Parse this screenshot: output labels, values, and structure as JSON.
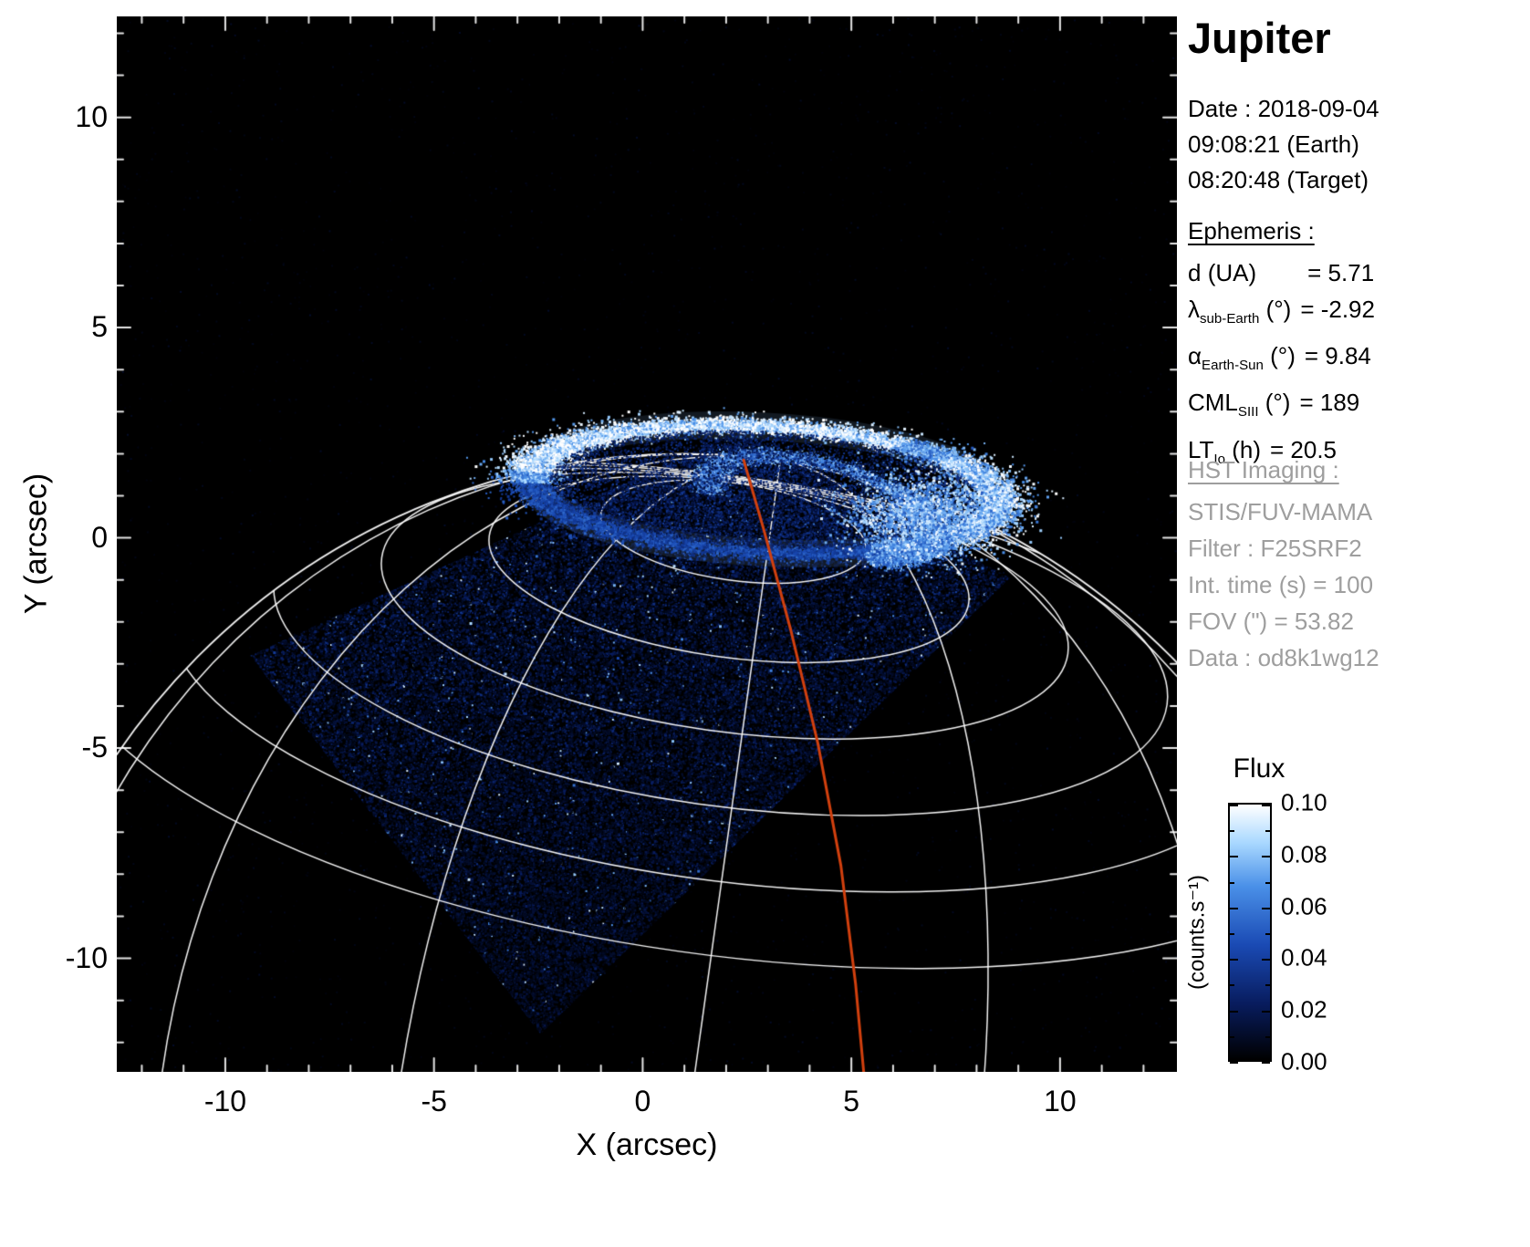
{
  "panel": {
    "title": "Jupiter",
    "date_line": "Date : 2018-09-04",
    "earth_time": "09:08:21 (Earth)",
    "target_time": "08:20:48 (Target)",
    "ephemeris_heading": "Ephemeris :",
    "ephemeris_rows": [
      {
        "symbol": "d",
        "subscript": "",
        "unit": "(UA)",
        "value": "= 5.71"
      },
      {
        "symbol": "λ",
        "subscript": "sub-Earth",
        "unit": "(°)",
        "value": "= -2.92"
      },
      {
        "symbol": "α",
        "subscript": "Earth-Sun",
        "unit": "(°)",
        "value": "= 9.84"
      },
      {
        "symbol": "CML",
        "subscript": "SIII",
        "unit": "(°)",
        "value": "= 189"
      },
      {
        "symbol": "LT",
        "subscript": "Io",
        "unit": "(h)",
        "value": "= 20.5"
      }
    ],
    "hst_heading": "HST Imaging :",
    "hst_rows": [
      "STIS/FUV-MAMA",
      "Filter : F25SRF2",
      "Int. time (s) = 100",
      "FOV (\") = 53.82",
      "Data : od8k1wg12"
    ]
  },
  "colorbar": {
    "title": "Flux",
    "unit": "(counts.s⁻¹)",
    "tick_labels": [
      "0.10",
      "0.08",
      "0.06",
      "0.04",
      "0.02",
      "0.00"
    ],
    "range": [
      0.0,
      0.1
    ],
    "colormap_stops": [
      [
        0.0,
        "#000000"
      ],
      [
        0.22,
        "#081c5e"
      ],
      [
        0.45,
        "#1a4ab4"
      ],
      [
        0.68,
        "#4a90e8"
      ],
      [
        0.85,
        "#a9d8ff"
      ],
      [
        1.0,
        "#ffffff"
      ]
    ]
  },
  "chart_data": {
    "type": "heatmap",
    "title": "HST/STIS far-UV image of Jupiter's northern aurora",
    "xlabel": "X (arcsec)",
    "ylabel": "Y (arcsec)",
    "xlim": [
      -12.6,
      12.8
    ],
    "ylim": [
      -12.7,
      12.4
    ],
    "x_ticks": [
      -10,
      -5,
      0,
      5,
      10
    ],
    "y_ticks": [
      10,
      5,
      0,
      -5,
      -10
    ],
    "flux_range_counts_per_s": [
      0.0,
      0.1
    ],
    "background_color": "#000000",
    "grid": "white planetary latitude-longitude graticule over the disk",
    "legend": "vertical flux colorbar at right",
    "features": {
      "detector_fov_corners_arcsec": [
        [
          -9.4,
          -2.8
        ],
        [
          2.3,
          2.55
        ],
        [
          8.8,
          -0.95
        ],
        [
          -2.45,
          -11.8
        ]
      ],
      "aurora_main_oval": {
        "center": [
          2.9,
          1.15
        ],
        "semi_major": 5.6,
        "semi_minor": 1.5,
        "rotation_deg": -3
      },
      "aurora_secondary_arc": {
        "center": [
          4.3,
          0.7
        ],
        "semi_major": 2.8,
        "semi_minor": 1.05,
        "rotation_deg": -15
      },
      "aurora_bright_patch": {
        "center": [
          6.7,
          0.5
        ],
        "sigma": [
          0.85,
          0.5
        ]
      },
      "planet_limb": {
        "center": [
          1.0,
          -14.5
        ],
        "radius": 16.5
      },
      "graticule_pole": [
        2.3,
        1.25
      ],
      "graticule_lat_semi_major": [
        3.2,
        5.8,
        8.3,
        10.8,
        13.3,
        15.8
      ],
      "graticule_meridians_deg": [
        0,
        25,
        50,
        75
      ],
      "io_footprint_track": {
        "color": "#d2400e",
        "points": [
          [
            2.42,
            1.85
          ],
          [
            2.9,
            0.2
          ],
          [
            3.55,
            -2.2
          ],
          [
            4.2,
            -4.9
          ],
          [
            4.75,
            -7.8
          ],
          [
            5.1,
            -10.6
          ],
          [
            5.3,
            -12.75
          ]
        ]
      }
    }
  }
}
